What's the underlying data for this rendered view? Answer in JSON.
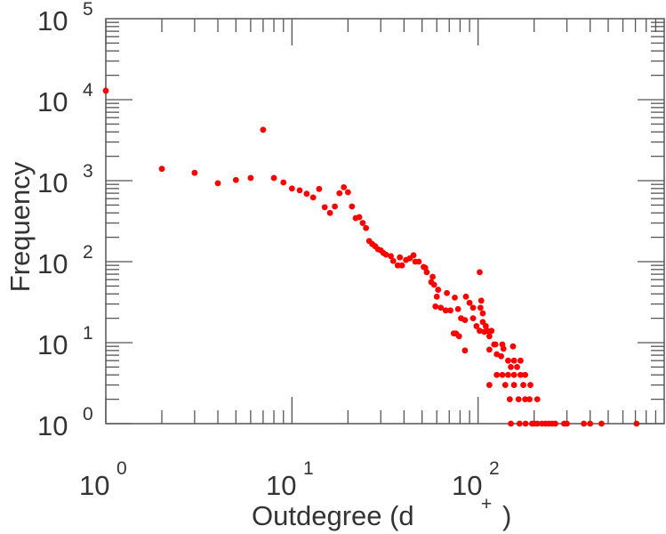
{
  "chart_data": {
    "type": "scatter",
    "title": "",
    "xlabel": "Outdegree (d",
    "xlabel_sup": "+",
    "xlabel_close": ")",
    "ylabel": "Frequency",
    "xscale": "log",
    "yscale": "log",
    "xlim": [
      1,
      1000
    ],
    "ylim": [
      1,
      100000
    ],
    "grid": false,
    "marker_color": "#ff0000",
    "axis_color": "#555555",
    "x_ticks": [
      {
        "base": "10",
        "exp": "0"
      },
      {
        "base": "10",
        "exp": "1"
      },
      {
        "base": "10",
        "exp": "2"
      }
    ],
    "y_ticks": [
      {
        "base": "10",
        "exp": "0"
      },
      {
        "base": "10",
        "exp": "1"
      },
      {
        "base": "10",
        "exp": "2"
      },
      {
        "base": "10",
        "exp": "3"
      },
      {
        "base": "10",
        "exp": "4"
      },
      {
        "base": "10",
        "exp": "5"
      }
    ],
    "points": [
      [
        1,
        12900
      ],
      [
        2,
        1400
      ],
      [
        3,
        1250
      ],
      [
        4,
        930
      ],
      [
        5,
        1020
      ],
      [
        6,
        1080
      ],
      [
        7,
        4250
      ],
      [
        8,
        1080
      ],
      [
        9,
        950
      ],
      [
        10,
        800
      ],
      [
        11,
        760
      ],
      [
        12,
        690
      ],
      [
        13,
        620
      ],
      [
        14,
        790
      ],
      [
        15,
        470
      ],
      [
        16,
        400
      ],
      [
        17,
        480
      ],
      [
        18,
        700
      ],
      [
        19,
        830
      ],
      [
        20,
        720
      ],
      [
        21,
        480
      ],
      [
        22,
        345
      ],
      [
        23,
        355
      ],
      [
        24,
        300
      ],
      [
        25,
        260
      ],
      [
        26,
        180
      ],
      [
        27,
        165
      ],
      [
        28,
        155
      ],
      [
        29,
        142
      ],
      [
        30,
        138
      ],
      [
        31,
        128
      ],
      [
        32,
        122
      ],
      [
        34,
        117
      ],
      [
        35,
        102
      ],
      [
        37,
        90
      ],
      [
        38,
        113
      ],
      [
        39,
        90
      ],
      [
        41,
        105
      ],
      [
        43,
        110
      ],
      [
        45,
        120
      ],
      [
        46,
        100
      ],
      [
        48,
        100
      ],
      [
        51,
        86
      ],
      [
        52,
        84
      ],
      [
        53,
        74
      ],
      [
        56,
        56
      ],
      [
        57,
        65
      ],
      [
        58,
        52
      ],
      [
        59,
        28
      ],
      [
        60,
        37
      ],
      [
        61,
        45
      ],
      [
        63,
        27
      ],
      [
        67,
        25
      ],
      [
        68,
        41
      ],
      [
        71,
        25
      ],
      [
        74,
        13
      ],
      [
        75,
        36
      ],
      [
        76,
        13
      ],
      [
        78,
        26
      ],
      [
        79,
        12
      ],
      [
        81,
        20
      ],
      [
        85,
        19
      ],
      [
        85,
        8
      ],
      [
        86,
        37
      ],
      [
        90,
        31
      ],
      [
        94,
        27
      ],
      [
        94,
        20
      ],
      [
        98,
        16
      ],
      [
        102,
        74
      ],
      [
        102,
        14
      ],
      [
        103,
        27
      ],
      [
        104,
        33
      ],
      [
        106,
        23
      ],
      [
        106,
        18
      ],
      [
        108,
        13.6
      ],
      [
        110,
        16
      ],
      [
        112,
        14
      ],
      [
        115,
        12
      ],
      [
        115,
        8.2
      ],
      [
        115,
        3
      ],
      [
        118,
        14
      ],
      [
        122,
        9.5
      ],
      [
        124,
        9.5
      ],
      [
        126,
        7.2
      ],
      [
        126,
        4
      ],
      [
        133,
        6.8
      ],
      [
        135,
        9.5
      ],
      [
        135,
        4
      ],
      [
        137,
        8.4
      ],
      [
        140,
        3
      ],
      [
        145,
        6
      ],
      [
        145,
        4
      ],
      [
        148,
        2
      ],
      [
        150,
        5
      ],
      [
        150,
        1
      ],
      [
        154,
        9
      ],
      [
        156,
        6
      ],
      [
        156,
        4
      ],
      [
        156,
        3
      ],
      [
        162,
        5
      ],
      [
        165,
        2
      ],
      [
        167,
        1
      ],
      [
        169,
        6
      ],
      [
        169,
        4
      ],
      [
        175,
        3
      ],
      [
        179,
        4
      ],
      [
        179,
        2
      ],
      [
        180,
        1
      ],
      [
        189,
        2
      ],
      [
        191,
        3
      ],
      [
        195,
        1
      ],
      [
        200,
        1
      ],
      [
        208,
        2
      ],
      [
        208,
        1
      ],
      [
        220,
        1
      ],
      [
        230,
        1
      ],
      [
        240,
        1
      ],
      [
        250,
        1
      ],
      [
        260,
        1
      ],
      [
        290,
        1
      ],
      [
        300,
        1
      ],
      [
        370,
        1
      ],
      [
        400,
        1
      ],
      [
        460,
        1
      ],
      [
        710,
        1
      ]
    ]
  }
}
